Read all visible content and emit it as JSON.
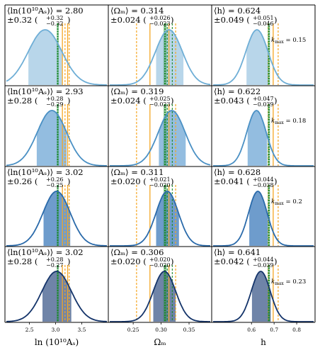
{
  "chart_data": {
    "type": "density-grid",
    "columns": [
      {
        "key": "lnAs",
        "xlabel": "ln (10¹⁰Aₛ)",
        "xlim": [
          2.06,
          3.98
        ],
        "ticks": [
          {
            "v": 2.5,
            "t": "2.5"
          },
          {
            "v": 3.0,
            "t": "3.0"
          },
          {
            "v": 3.5,
            "t": "3.5"
          }
        ],
        "stat_prefix": "⟨ln(10¹⁰Aₛ)⟩ = ",
        "truth": 3.04,
        "truth_band": [
          3.025,
          3.06
        ],
        "orange_lines": [
          3.13,
          3.23
        ],
        "orange_dashed": [
          3.18,
          3.26
        ]
      },
      {
        "key": "omegam",
        "xlabel": "Ωₘ",
        "xlim": [
          0.208,
          0.388
        ],
        "ticks": [
          {
            "v": 0.25,
            "t": "0.25"
          },
          {
            "v": 0.3,
            "t": "0.30"
          },
          {
            "v": 0.35,
            "t": "0.35"
          }
        ],
        "stat_prefix": "⟨Ωₘ⟩ = ",
        "truth": 0.307,
        "truth_band": [
          0.304,
          0.31
        ],
        "orange_lines": [
          0.28,
          0.314
        ],
        "orange_dashed": [
          0.256,
          0.326
        ],
        "green_dashed": [
          0.311,
          0.32
        ]
      },
      {
        "key": "h",
        "xlabel": "h",
        "xlim": [
          0.43,
          0.875
        ],
        "ticks": [
          {
            "v": 0.6,
            "t": "0.6"
          },
          {
            "v": 0.7,
            "t": "0.7"
          },
          {
            "v": 0.8,
            "t": "0.8"
          }
        ],
        "stat_prefix": "⟨h⟩ = ",
        "truth": 0.677,
        "truth_band": [
          0.672,
          0.682
        ],
        "orange_lines": [
          0.696
        ],
        "orange_dashed": [
          0.674,
          0.718
        ]
      }
    ],
    "rows": [
      {
        "kmax_label": "kmax = 0.15",
        "kmax_num": "0.15",
        "color": "#6eaed6",
        "fill": "#b8d6ea",
        "panels": [
          {
            "mean": 2.8,
            "std": 0.32,
            "up": 0.32,
            "dn": 0.32,
            "mean_text": "2.80",
            "std_text": "0.32",
            "up_text": "+0.32",
            "dn_text": "−0.32"
          },
          {
            "mean": 0.314,
            "std": 0.024,
            "up": 0.026,
            "dn": 0.023,
            "mean_text": "0.314",
            "std_text": "0.024",
            "up_text": "+0.026",
            "dn_text": "−0.023"
          },
          {
            "mean": 0.624,
            "std": 0.049,
            "up": 0.051,
            "dn": 0.046,
            "mean_text": "0.624",
            "std_text": "0.049",
            "up_text": "+0.051",
            "dn_text": "−0.046"
          }
        ]
      },
      {
        "kmax_label": "kmax = 0.18",
        "kmax_num": "0.18",
        "color": "#4a90c4",
        "fill": "#93bde0",
        "panels": [
          {
            "mean": 2.93,
            "std": 0.28,
            "up": 0.28,
            "dn": 0.29,
            "mean_text": "2.93",
            "std_text": "0.28",
            "up_text": "+0.28",
            "dn_text": "−0.29"
          },
          {
            "mean": 0.319,
            "std": 0.024,
            "up": 0.025,
            "dn": 0.023,
            "mean_text": "0.319",
            "std_text": "0.024",
            "up_text": "+0.025",
            "dn_text": "−0.023"
          },
          {
            "mean": 0.622,
            "std": 0.043,
            "up": 0.047,
            "dn": 0.039,
            "mean_text": "0.622",
            "std_text": "0.043",
            "up_text": "+0.047",
            "dn_text": "−0.039"
          }
        ]
      },
      {
        "kmax_label": "kmax = 0.2",
        "kmax_num": "0.2",
        "color": "#2a6aaa",
        "fill": "#6e9ccc",
        "panels": [
          {
            "mean": 3.02,
            "std": 0.26,
            "up": 0.26,
            "dn": 0.25,
            "mean_text": "3.02",
            "std_text": "0.26",
            "up_text": "+0.26",
            "dn_text": "−0.25"
          },
          {
            "mean": 0.311,
            "std": 0.02,
            "up": 0.021,
            "dn": 0.02,
            "mean_text": "0.311",
            "std_text": "0.020",
            "up_text": "+0.021",
            "dn_text": "−0.020"
          },
          {
            "mean": 0.628,
            "std": 0.041,
            "up": 0.044,
            "dn": 0.038,
            "mean_text": "0.628",
            "std_text": "0.041",
            "up_text": "+0.044",
            "dn_text": "−0.038"
          }
        ]
      },
      {
        "kmax_label": "kmax = 0.23",
        "kmax_num": "0.23",
        "color": "#14346a",
        "fill": "#6f84a8",
        "panels": [
          {
            "mean": 3.02,
            "std": 0.28,
            "up": 0.28,
            "dn": 0.27,
            "mean_text": "3.02",
            "std_text": "0.28",
            "up_text": "+0.28",
            "dn_text": "−0.27"
          },
          {
            "mean": 0.306,
            "std": 0.02,
            "up": 0.02,
            "dn": 0.02,
            "mean_text": "0.306",
            "std_text": "0.020",
            "up_text": "+0.020",
            "dn_text": "−0.020"
          },
          {
            "mean": 0.641,
            "std": 0.042,
            "up": 0.044,
            "dn": 0.039,
            "mean_text": "0.641",
            "std_text": "0.042",
            "up_text": "+0.044",
            "dn_text": "−0.039"
          }
        ]
      }
    ],
    "colors": {
      "orange": "#f5a623",
      "green": "#1a8a2a",
      "frame": "#000000"
    }
  }
}
